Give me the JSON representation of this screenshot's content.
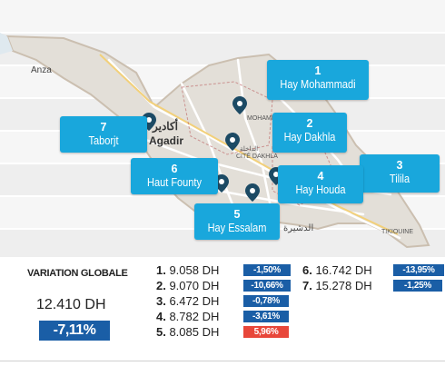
{
  "regions": [
    {
      "num": "1",
      "name": "Hay Mohammadi"
    },
    {
      "num": "2",
      "name": "Hay Dakhla"
    },
    {
      "num": "3",
      "name": "Tilila"
    },
    {
      "num": "4",
      "name": "Hay Houda"
    },
    {
      "num": "5",
      "name": "Hay Essalam"
    },
    {
      "num": "6",
      "name": "Haut Founty"
    },
    {
      "num": "7",
      "name": "Taborjt"
    }
  ],
  "map_labels": {
    "anza": "Anza",
    "agadir": "Agadir",
    "agadir_arabic": "أكادير",
    "mohammadi": "MOHAMMADI",
    "cite_dakhla": "CITÉ DAKHLA",
    "dakhla_arabic": "الداخلة",
    "dcheira_arabic": "الدشيرة",
    "tikiouine": "TIKIOUINE"
  },
  "stats": {
    "title": "VARIATION GLOBALE",
    "global_value": "12.410 DH",
    "global_variation": "-7,11%",
    "rows": [
      {
        "rank": "1.",
        "value": " 9.058 DH",
        "variation": "-1,50%",
        "color": "#1a5ea6"
      },
      {
        "rank": "2.",
        "value": " 9.070 DH",
        "variation": "-10,66%",
        "color": "#1a5ea6"
      },
      {
        "rank": "3.",
        "value": " 6.472 DH",
        "variation": "-0,78%",
        "color": "#1a5ea6"
      },
      {
        "rank": "4.",
        "value": " 8.782 DH",
        "variation": "-3,61%",
        "color": "#1a5ea6"
      },
      {
        "rank": "5.",
        "value": " 8.085 DH",
        "variation": "5,96%",
        "color": "#e8473a"
      },
      {
        "rank": "6.",
        "value": " 16.742 DH",
        "variation": "-13,95%",
        "color": "#1a5ea6"
      },
      {
        "rank": "7.",
        "value": " 15.278 DH",
        "variation": "-1,25%",
        "color": "#1a5ea6"
      }
    ]
  }
}
